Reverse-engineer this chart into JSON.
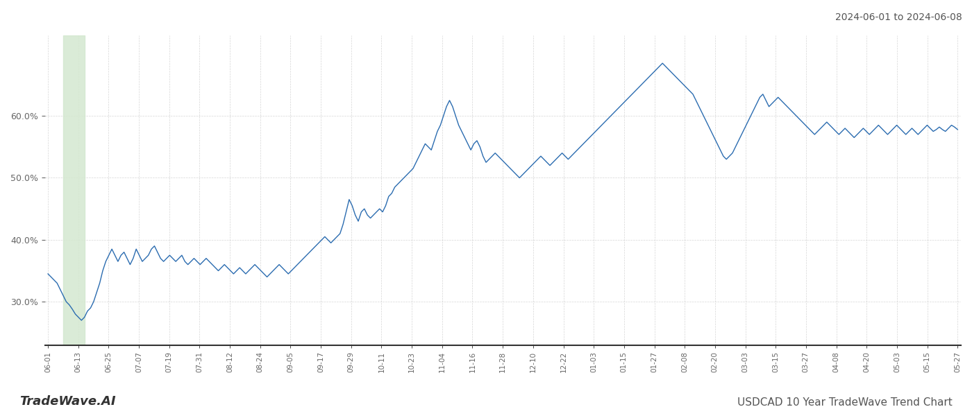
{
  "title_top_right": "2024-06-01 to 2024-06-08",
  "title_bottom_left": "TradeWave.AI",
  "title_bottom_right": "USDCAD 10 Year TradeWave Trend Chart",
  "line_color": "#2b6cb0",
  "highlight_color": "#d4e8d0",
  "background_color": "#ffffff",
  "grid_color": "#cccccc",
  "ylim": [
    23,
    73
  ],
  "yticks": [
    30.0,
    40.0,
    50.0,
    60.0
  ],
  "xtick_labels": [
    "06-01",
    "06-13",
    "06-25",
    "07-07",
    "07-19",
    "07-31",
    "08-12",
    "08-24",
    "09-05",
    "09-17",
    "09-29",
    "10-11",
    "10-23",
    "11-04",
    "11-16",
    "11-28",
    "12-10",
    "12-22",
    "01-03",
    "01-15",
    "01-27",
    "02-08",
    "02-20",
    "03-03",
    "03-15",
    "03-27",
    "04-08",
    "04-20",
    "05-03",
    "05-15",
    "05-27"
  ],
  "values": [
    34.5,
    34.0,
    33.5,
    33.0,
    32.0,
    31.0,
    30.0,
    29.5,
    28.8,
    28.0,
    27.5,
    27.0,
    27.5,
    28.5,
    29.0,
    30.0,
    31.5,
    33.0,
    35.0,
    36.5,
    37.5,
    38.5,
    37.5,
    36.5,
    37.5,
    38.0,
    37.0,
    36.0,
    37.0,
    38.5,
    37.5,
    36.5,
    37.0,
    37.5,
    38.5,
    39.0,
    38.0,
    37.0,
    36.5,
    37.0,
    37.5,
    37.0,
    36.5,
    37.0,
    37.5,
    36.5,
    36.0,
    36.5,
    37.0,
    36.5,
    36.0,
    36.5,
    37.0,
    36.5,
    36.0,
    35.5,
    35.0,
    35.5,
    36.0,
    35.5,
    35.0,
    34.5,
    35.0,
    35.5,
    35.0,
    34.5,
    35.0,
    35.5,
    36.0,
    35.5,
    35.0,
    34.5,
    34.0,
    34.5,
    35.0,
    35.5,
    36.0,
    35.5,
    35.0,
    34.5,
    35.0,
    35.5,
    36.0,
    36.5,
    37.0,
    37.5,
    38.0,
    38.5,
    39.0,
    39.5,
    40.0,
    40.5,
    40.0,
    39.5,
    40.0,
    40.5,
    41.0,
    42.5,
    44.5,
    46.5,
    45.5,
    44.0,
    43.0,
    44.5,
    45.0,
    44.0,
    43.5,
    44.0,
    44.5,
    45.0,
    44.5,
    45.5,
    47.0,
    47.5,
    48.5,
    49.0,
    49.5,
    50.0,
    50.5,
    51.0,
    51.5,
    52.5,
    53.5,
    54.5,
    55.5,
    55.0,
    54.5,
    56.0,
    57.5,
    58.5,
    60.0,
    61.5,
    62.5,
    61.5,
    60.0,
    58.5,
    57.5,
    56.5,
    55.5,
    54.5,
    55.5,
    56.0,
    55.0,
    53.5,
    52.5,
    53.0,
    53.5,
    54.0,
    53.5,
    53.0,
    52.5,
    52.0,
    51.5,
    51.0,
    50.5,
    50.0,
    50.5,
    51.0,
    51.5,
    52.0,
    52.5,
    53.0,
    53.5,
    53.0,
    52.5,
    52.0,
    52.5,
    53.0,
    53.5,
    54.0,
    53.5,
    53.0,
    53.5,
    54.0,
    54.5,
    55.0,
    55.5,
    56.0,
    56.5,
    57.0,
    57.5,
    58.0,
    58.5,
    59.0,
    59.5,
    60.0,
    60.5,
    61.0,
    61.5,
    62.0,
    62.5,
    63.0,
    63.5,
    64.0,
    64.5,
    65.0,
    65.5,
    66.0,
    66.5,
    67.0,
    67.5,
    68.0,
    68.5,
    68.0,
    67.5,
    67.0,
    66.5,
    66.0,
    65.5,
    65.0,
    64.5,
    64.0,
    63.5,
    62.5,
    61.5,
    60.5,
    59.5,
    58.5,
    57.5,
    56.5,
    55.5,
    54.5,
    53.5,
    53.0,
    53.5,
    54.0,
    55.0,
    56.0,
    57.0,
    58.0,
    59.0,
    60.0,
    61.0,
    62.0,
    63.0,
    63.5,
    62.5,
    61.5,
    62.0,
    62.5,
    63.0,
    62.5,
    62.0,
    61.5,
    61.0,
    60.5,
    60.0,
    59.5,
    59.0,
    58.5,
    58.0,
    57.5,
    57.0,
    57.5,
    58.0,
    58.5,
    59.0,
    58.5,
    58.0,
    57.5,
    57.0,
    57.5,
    58.0,
    57.5,
    57.0,
    56.5,
    57.0,
    57.5,
    58.0,
    57.5,
    57.0,
    57.5,
    58.0,
    58.5,
    58.0,
    57.5,
    57.0,
    57.5,
    58.0,
    58.5,
    58.0,
    57.5,
    57.0,
    57.5,
    58.0,
    57.5,
    57.0,
    57.5,
    58.0,
    58.5,
    58.0,
    57.5,
    57.8,
    58.2,
    57.8,
    57.5,
    58.0,
    58.5,
    58.2,
    57.8
  ]
}
